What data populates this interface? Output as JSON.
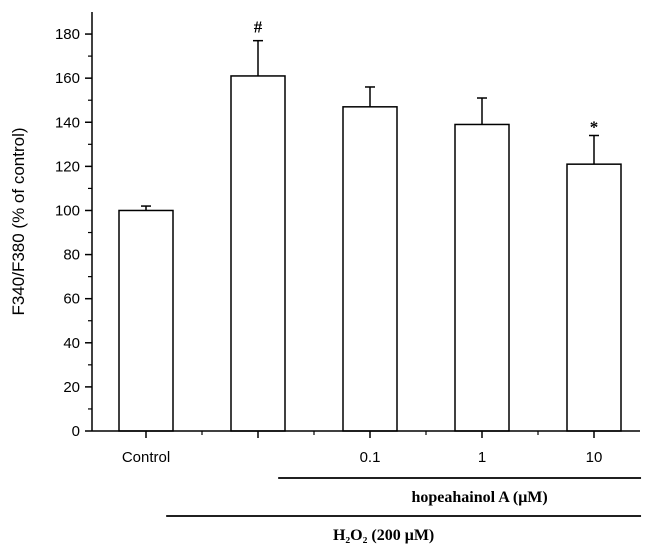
{
  "chart_data": {
    "type": "bar",
    "categories": [
      "Control",
      "",
      "0.1",
      "1",
      "10"
    ],
    "values": [
      100,
      161,
      147,
      139,
      121
    ],
    "errors": [
      2,
      16,
      9,
      12,
      13
    ],
    "annotations": [
      "",
      "#",
      "",
      "",
      "*"
    ],
    "ylabel": "F340/F380 (% of control)",
    "ylim": [
      0,
      190
    ],
    "yticks": [
      0,
      20,
      40,
      60,
      80,
      100,
      120,
      140,
      160,
      180
    ],
    "grid": false,
    "bar_color": "#ffffff",
    "edge_color": "#000000",
    "groups": [
      {
        "label": "hopeahainol A (μM)",
        "span": [
          2,
          4
        ]
      },
      {
        "label": "H₂O₂ (200 μM)",
        "span": [
          1,
          4
        ]
      }
    ]
  }
}
